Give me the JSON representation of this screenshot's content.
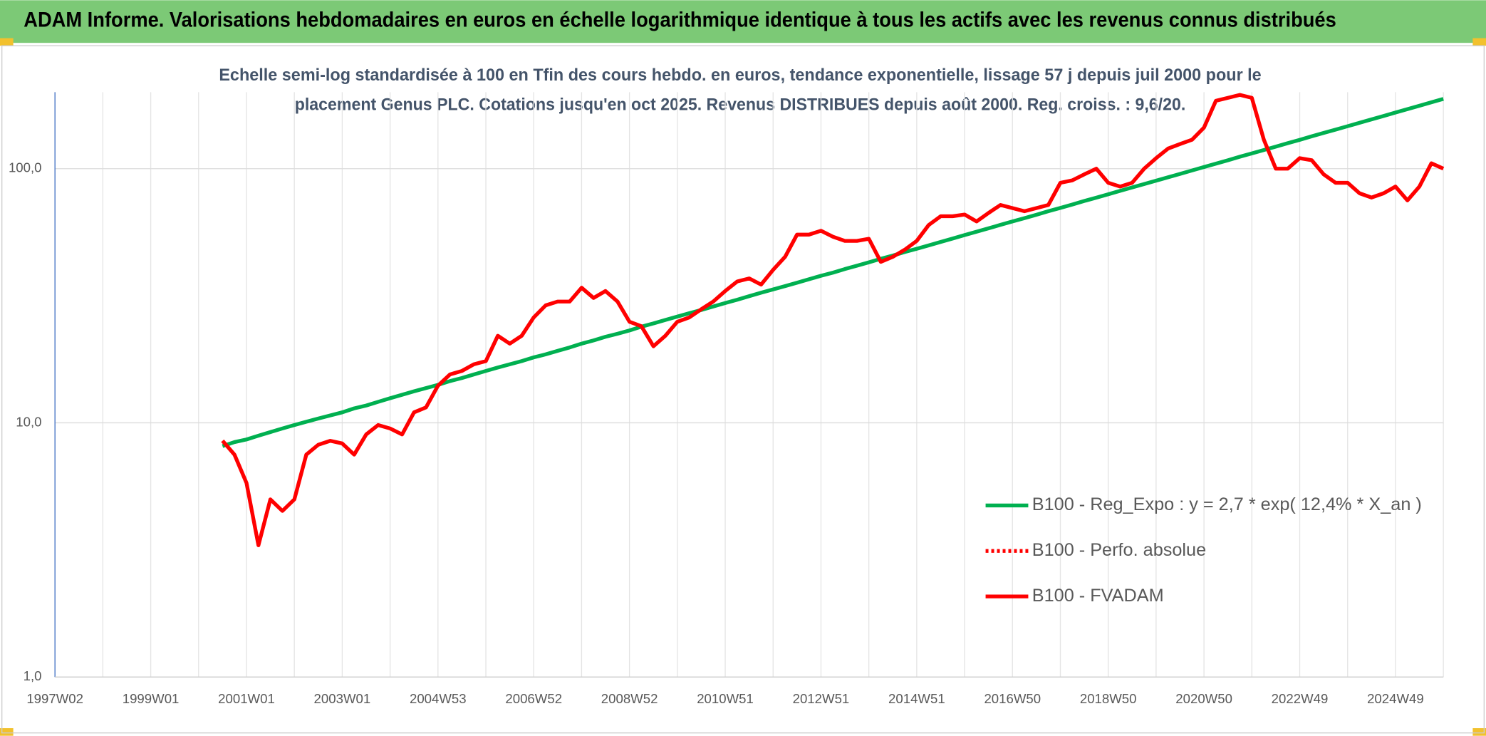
{
  "chart_data": {
    "type": "line",
    "title": "ADAM Informe. Valorisations hebdomadaires en euros en échelle logarithmique identique à tous les actifs avec les revenus connus distribués",
    "subtitle": [
      "Echelle semi-log standardisée à 100 en Tfin des cours hebdo. en euros, tendance exponentielle, lissage 57 j depuis juil 2000 pour le",
      "placement Genus PLC. Cotations jusqu'en oct 2025. Revenus DISTRIBUES depuis août 2000. Reg. croiss. : 9,6/20."
    ],
    "categories": [
      "1997W02",
      null,
      null,
      null,
      null,
      null,
      null,
      null,
      "1999W01",
      null,
      null,
      null,
      null,
      null,
      null,
      null,
      "2001W01",
      null,
      null,
      null,
      null,
      null,
      null,
      null,
      "2003W01",
      null,
      null,
      null,
      null,
      null,
      null,
      null,
      "2004W53",
      null,
      null,
      null,
      null,
      null,
      null,
      null,
      "2006W52",
      null,
      null,
      null,
      null,
      null,
      null,
      null,
      "2008W52",
      null,
      null,
      null,
      null,
      null,
      null,
      null,
      "2010W51",
      null,
      null,
      null,
      null,
      null,
      null,
      null,
      "2012W51",
      null,
      null,
      null,
      null,
      null,
      null,
      null,
      "2014W51",
      null,
      null,
      null,
      null,
      null,
      null,
      null,
      "2016W50",
      null,
      null,
      null,
      null,
      null,
      null,
      null,
      "2018W50",
      null,
      null,
      null,
      null,
      null,
      null,
      null,
      "2020W50",
      null,
      null,
      null,
      null,
      null,
      null,
      null,
      "2022W49",
      null,
      null,
      null,
      null,
      null,
      null,
      null,
      "2024W49",
      null,
      null,
      null,
      null
    ],
    "series": [
      {
        "name": "B100 - Reg_Expo : y = 2,7 * exp( 12,4% *  X_an )",
        "color": "#00b050",
        "style": "solid",
        "values": [
          null,
          null,
          null,
          null,
          null,
          null,
          null,
          null,
          null,
          null,
          null,
          null,
          null,
          null,
          8.1,
          8.4,
          8.6,
          8.9,
          9.2,
          9.5,
          9.8,
          10.1,
          10.4,
          10.7,
          11.0,
          11.4,
          11.7,
          12.1,
          12.5,
          12.9,
          13.3,
          13.7,
          14.1,
          14.6,
          15.0,
          15.5,
          16.0,
          16.5,
          17.0,
          17.5,
          18.1,
          18.6,
          19.2,
          19.8,
          20.5,
          21.1,
          21.8,
          22.4,
          23.1,
          23.9,
          24.6,
          25.4,
          26.2,
          27.0,
          27.8,
          28.7,
          29.6,
          30.5,
          31.5,
          32.5,
          33.5,
          34.5,
          35.6,
          36.7,
          37.9,
          39.0,
          40.3,
          41.5,
          42.8,
          44.2,
          45.5,
          47.0,
          48.4,
          49.9,
          51.5,
          53.1,
          54.8,
          56.5,
          58.3,
          60.1,
          62.0,
          63.9,
          65.9,
          68.0,
          70.1,
          72.3,
          74.6,
          76.9,
          79.3,
          81.8,
          84.4,
          87.0,
          89.7,
          92.5,
          95.4,
          98.4,
          101.5,
          104.7,
          108.0,
          111.4,
          114.8,
          118.4,
          122.1,
          126.0,
          129.9,
          134.0,
          138.2,
          142.5,
          147.0,
          151.6,
          156.3,
          161.2,
          166.3,
          171.5,
          176.9,
          182.4,
          188.1
        ]
      },
      {
        "name": "B100 - Perfo. absolue",
        "color": "#ff0000",
        "style": "dotted",
        "values": [
          null,
          null,
          null,
          null,
          null,
          null,
          null,
          null,
          null,
          null,
          null,
          null,
          null,
          null,
          null,
          null,
          null,
          null,
          null,
          null,
          null,
          null,
          null,
          null,
          null,
          null,
          null,
          null,
          null,
          null,
          null,
          null,
          null,
          null,
          null,
          null,
          null,
          null,
          null,
          null,
          null,
          null,
          null,
          null,
          null,
          null,
          null,
          null,
          null,
          null,
          null,
          null,
          null,
          null,
          null,
          null,
          null,
          null,
          null,
          null,
          null,
          null,
          null,
          null,
          null,
          null,
          null,
          null,
          null,
          null,
          null,
          null,
          null,
          null,
          null,
          null,
          null,
          null,
          null,
          null,
          null,
          null,
          null,
          null,
          null,
          null,
          null,
          null,
          null,
          null,
          null,
          null,
          null,
          null,
          null,
          null,
          null,
          null,
          null,
          null,
          null,
          null,
          null,
          null,
          null,
          null,
          null,
          null,
          null,
          null,
          null,
          null,
          null,
          null,
          null,
          null,
          null
        ]
      },
      {
        "name": "B100 - FVADAM",
        "color": "#ff0000",
        "style": "solid",
        "values": [
          null,
          null,
          null,
          null,
          null,
          null,
          null,
          null,
          null,
          null,
          null,
          null,
          null,
          null,
          8.5,
          7.5,
          5.8,
          3.3,
          5.0,
          4.5,
          5.0,
          7.5,
          8.2,
          8.5,
          8.3,
          7.5,
          9.0,
          9.8,
          9.5,
          9.0,
          11.0,
          11.5,
          14,
          15.5,
          16,
          17,
          17.5,
          22,
          20.5,
          22,
          26,
          29,
          30,
          30,
          34,
          31,
          33,
          30,
          25,
          24,
          20,
          22,
          25,
          26,
          28,
          30,
          33,
          36,
          37,
          35,
          40,
          45,
          55,
          55,
          57,
          54,
          52,
          52,
          53,
          43,
          45,
          48,
          52,
          60,
          65,
          65,
          66,
          62,
          67,
          72,
          70,
          68,
          70,
          72,
          88,
          90,
          95,
          100,
          88,
          85,
          88,
          100,
          110,
          120,
          125,
          130,
          145,
          185,
          190,
          195,
          190,
          130,
          100,
          100,
          110,
          108,
          95,
          88,
          88,
          80,
          77,
          80,
          85,
          75,
          85,
          105,
          100
        ]
      }
    ],
    "ylim": [
      1,
      200
    ],
    "log_scale": true,
    "grid": true,
    "yticks": [
      {
        "value": 1,
        "label": "1,0"
      },
      {
        "value": 10,
        "label": "10,0"
      },
      {
        "value": 100,
        "label": "100,0"
      }
    ]
  }
}
